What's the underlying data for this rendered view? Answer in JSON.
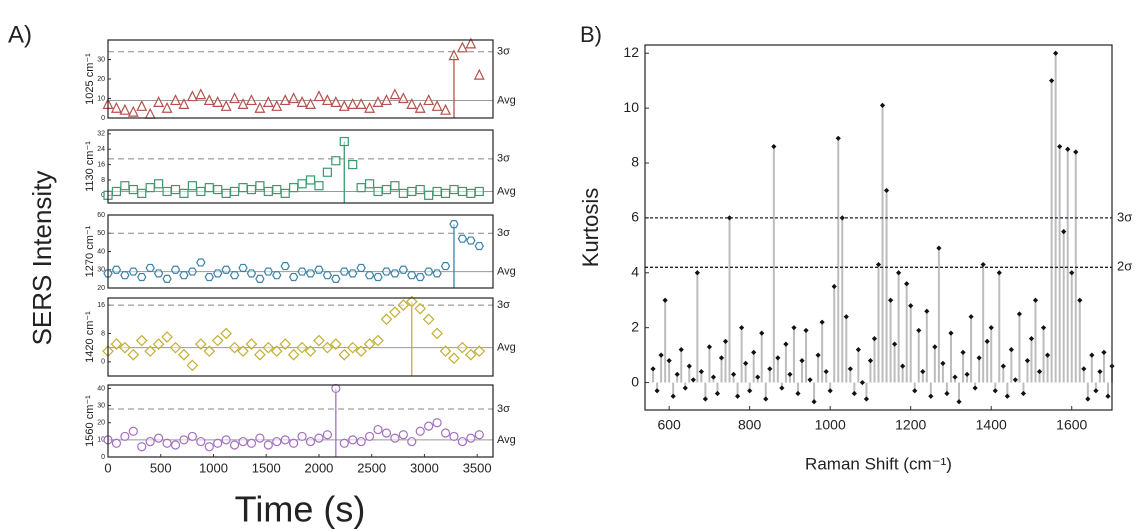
{
  "panel_a": {
    "label": "A)",
    "ylabel": "SERS Intensity",
    "xlabel": "Time (s)"
  },
  "chart_data": [
    {
      "type": "scatter",
      "ylabel": "1025 cm⁻¹",
      "marker": "triangle",
      "color": "#b5524c",
      "xlim": [
        0,
        3650
      ],
      "ylim": [
        0,
        40
      ],
      "yticks": [
        0,
        10,
        20,
        30
      ],
      "event_x": 3280,
      "lines": [
        {
          "value": 34,
          "label": "3σ",
          "style": "dashed"
        },
        {
          "value": 9,
          "label": "Avg",
          "style": "solid"
        }
      ],
      "x": [
        0,
        80,
        160,
        240,
        320,
        400,
        480,
        560,
        640,
        720,
        800,
        880,
        960,
        1040,
        1120,
        1200,
        1280,
        1360,
        1440,
        1520,
        1600,
        1680,
        1760,
        1840,
        1920,
        2000,
        2080,
        2160,
        2240,
        2320,
        2400,
        2480,
        2560,
        2640,
        2720,
        2800,
        2880,
        2960,
        3040,
        3120,
        3200,
        3280,
        3360,
        3440,
        3520
      ],
      "values": [
        7,
        5,
        4,
        3,
        6,
        2,
        8,
        5,
        9,
        7,
        11,
        12,
        9,
        8,
        6,
        10,
        7,
        9,
        5,
        8,
        6,
        9,
        10,
        8,
        7,
        11,
        9,
        8,
        6,
        7,
        7,
        5,
        8,
        9,
        12,
        10,
        7,
        5,
        9,
        6,
        4,
        32,
        36,
        38,
        22
      ]
    },
    {
      "type": "scatter",
      "ylabel": "1130 cm⁻¹",
      "marker": "square",
      "color": "#3a9a6e",
      "xlim": [
        0,
        3650
      ],
      "ylim": [
        -4,
        34
      ],
      "yticks": [
        0,
        8,
        16,
        24,
        32
      ],
      "event_x": 2240,
      "lines": [
        {
          "value": 19,
          "label": "3σ",
          "style": "dashed"
        },
        {
          "value": 2,
          "label": "Avg",
          "style": "solid"
        }
      ],
      "x": [
        0,
        80,
        160,
        240,
        320,
        400,
        480,
        560,
        640,
        720,
        800,
        880,
        960,
        1040,
        1120,
        1200,
        1280,
        1360,
        1440,
        1520,
        1600,
        1680,
        1760,
        1840,
        1920,
        2000,
        2080,
        2160,
        2240,
        2320,
        2400,
        2480,
        2560,
        2640,
        2720,
        2800,
        2880,
        2960,
        3040,
        3120,
        3200,
        3280,
        3360,
        3440,
        3520
      ],
      "values": [
        0,
        2,
        5,
        3,
        1,
        4,
        6,
        2,
        3,
        1,
        5,
        2,
        4,
        3,
        1,
        2,
        4,
        3,
        5,
        2,
        3,
        1,
        4,
        6,
        8,
        5,
        12,
        18,
        28,
        16,
        4,
        6,
        2,
        3,
        5,
        1,
        2,
        3,
        0,
        2,
        1,
        3,
        2,
        1,
        2
      ]
    },
    {
      "type": "scatter",
      "ylabel": "1270 cm⁻¹",
      "marker": "hexagon",
      "color": "#3d82a8",
      "xlim": [
        0,
        3650
      ],
      "ylim": [
        20,
        60
      ],
      "yticks": [
        20,
        30,
        40,
        50,
        60
      ],
      "event_x": 3280,
      "lines": [
        {
          "value": 50,
          "label": "3σ",
          "style": "dashed"
        },
        {
          "value": 29,
          "label": "Avg",
          "style": "solid"
        }
      ],
      "x": [
        0,
        80,
        160,
        240,
        320,
        400,
        480,
        560,
        640,
        720,
        800,
        880,
        960,
        1040,
        1120,
        1200,
        1280,
        1360,
        1440,
        1520,
        1600,
        1680,
        1760,
        1840,
        1920,
        2000,
        2080,
        2160,
        2240,
        2320,
        2400,
        2480,
        2560,
        2640,
        2720,
        2800,
        2880,
        2960,
        3040,
        3120,
        3200,
        3280,
        3360,
        3440,
        3520
      ],
      "values": [
        28,
        30,
        27,
        29,
        26,
        31,
        28,
        25,
        30,
        27,
        29,
        34,
        26,
        28,
        30,
        27,
        31,
        28,
        25,
        29,
        27,
        32,
        26,
        29,
        28,
        30,
        27,
        25,
        29,
        28,
        31,
        27,
        26,
        29,
        28,
        30,
        27,
        26,
        29,
        28,
        32,
        55,
        47,
        46,
        43
      ]
    },
    {
      "type": "scatter",
      "ylabel": "1420 cm⁻¹",
      "marker": "diamond",
      "color": "#c4ae34",
      "xlim": [
        0,
        3650
      ],
      "ylim": [
        -4,
        18
      ],
      "yticks": [
        0,
        8,
        16
      ],
      "event_x": 2880,
      "lines": [
        {
          "value": 16,
          "label": "3σ",
          "style": "dashed"
        },
        {
          "value": 4,
          "label": "Avg",
          "style": "solid"
        }
      ],
      "x": [
        0,
        80,
        160,
        240,
        320,
        400,
        480,
        560,
        640,
        720,
        800,
        880,
        960,
        1040,
        1120,
        1200,
        1280,
        1360,
        1440,
        1520,
        1600,
        1680,
        1760,
        1840,
        1920,
        2000,
        2080,
        2160,
        2240,
        2320,
        2400,
        2480,
        2560,
        2640,
        2720,
        2800,
        2880,
        2960,
        3040,
        3120,
        3200,
        3280,
        3360,
        3440,
        3520
      ],
      "values": [
        3,
        5,
        4,
        2,
        6,
        3,
        5,
        7,
        4,
        2,
        -1,
        5,
        3,
        6,
        8,
        4,
        3,
        5,
        2,
        4,
        3,
        5,
        2,
        4,
        3,
        6,
        4,
        5,
        2,
        4,
        3,
        5,
        6,
        12,
        14,
        16,
        17,
        15,
        12,
        8,
        3,
        1,
        4,
        2,
        3
      ]
    },
    {
      "type": "scatter",
      "ylabel": "1560 cm⁻¹",
      "marker": "circle",
      "color": "#a46fc2",
      "xlim": [
        0,
        3650
      ],
      "ylim": [
        0,
        42
      ],
      "yticks": [
        0,
        10,
        20,
        30,
        40
      ],
      "event_x": 2160,
      "lines": [
        {
          "value": 28,
          "label": "3σ",
          "style": "dashed"
        },
        {
          "value": 10,
          "label": "Avg",
          "style": "solid"
        }
      ],
      "xticks": [
        0,
        500,
        1000,
        1500,
        2000,
        2500,
        3000,
        3500
      ],
      "x": [
        0,
        80,
        160,
        240,
        320,
        400,
        480,
        560,
        640,
        720,
        800,
        880,
        960,
        1040,
        1120,
        1200,
        1280,
        1360,
        1440,
        1520,
        1600,
        1680,
        1760,
        1840,
        1920,
        2000,
        2080,
        2160,
        2240,
        2320,
        2400,
        2480,
        2560,
        2640,
        2720,
        2800,
        2880,
        2960,
        3040,
        3120,
        3200,
        3280,
        3360,
        3440,
        3520
      ],
      "values": [
        10,
        8,
        12,
        15,
        6,
        9,
        11,
        8,
        7,
        10,
        12,
        9,
        6,
        8,
        10,
        7,
        9,
        8,
        11,
        7,
        9,
        10,
        8,
        12,
        9,
        11,
        13,
        40,
        8,
        10,
        9,
        12,
        16,
        14,
        11,
        13,
        9,
        15,
        18,
        20,
        14,
        12,
        9,
        11,
        13
      ]
    },
    {
      "type": "stem",
      "panel_label": "B)",
      "xlabel": "Raman Shift (cm⁻¹)",
      "ylabel": "Kurtosis",
      "color": "#111111",
      "stem_color": "#bdbdbd",
      "xlim": [
        540,
        1700
      ],
      "xticks": [
        600,
        800,
        1000,
        1200,
        1400,
        1600
      ],
      "ylim": [
        -1,
        12.3
      ],
      "yticks": [
        0,
        2,
        4,
        6,
        8,
        10,
        12
      ],
      "lines": [
        {
          "value": 6,
          "label": "3σ",
          "style": "dotted"
        },
        {
          "value": 4.2,
          "label": "2σ",
          "style": "dotted"
        }
      ],
      "x": [
        560,
        570,
        580,
        590,
        600,
        610,
        620,
        630,
        640,
        650,
        660,
        670,
        680,
        690,
        700,
        710,
        720,
        730,
        740,
        750,
        760,
        770,
        780,
        790,
        800,
        810,
        820,
        830,
        840,
        850,
        860,
        870,
        880,
        890,
        900,
        910,
        920,
        930,
        940,
        950,
        960,
        970,
        980,
        990,
        1000,
        1010,
        1020,
        1030,
        1040,
        1050,
        1060,
        1070,
        1080,
        1090,
        1100,
        1110,
        1120,
        1130,
        1140,
        1150,
        1160,
        1170,
        1180,
        1190,
        1200,
        1210,
        1220,
        1230,
        1240,
        1250,
        1260,
        1270,
        1280,
        1290,
        1300,
        1310,
        1320,
        1330,
        1340,
        1350,
        1360,
        1370,
        1380,
        1390,
        1400,
        1410,
        1420,
        1430,
        1440,
        1450,
        1460,
        1470,
        1480,
        1490,
        1500,
        1510,
        1520,
        1530,
        1540,
        1550,
        1560,
        1570,
        1580,
        1590,
        1600,
        1610,
        1620,
        1630,
        1640,
        1650,
        1660,
        1670,
        1680,
        1690,
        1700
      ],
      "values": [
        0.5,
        -0.3,
        1.0,
        3.0,
        0.8,
        -0.5,
        0.3,
        1.2,
        -0.2,
        0.6,
        0.1,
        4.0,
        0.4,
        -0.6,
        1.3,
        0.2,
        -0.4,
        0.9,
        1.5,
        6.0,
        0.3,
        -0.5,
        2.0,
        0.7,
        -0.3,
        1.1,
        0.2,
        1.8,
        -0.6,
        0.5,
        8.6,
        0.9,
        -0.2,
        1.4,
        0.3,
        2.0,
        -0.4,
        0.8,
        1.9,
        0.1,
        -0.7,
        1.0,
        2.2,
        0.4,
        -0.3,
        3.5,
        8.9,
        6.0,
        2.4,
        0.5,
        -0.4,
        1.2,
        0.0,
        -0.6,
        0.8,
        1.6,
        4.3,
        10.1,
        7.0,
        3.0,
        1.4,
        4.0,
        0.6,
        3.6,
        2.8,
        -0.3,
        1.9,
        0.4,
        2.6,
        -0.5,
        1.3,
        4.9,
        0.7,
        -0.4,
        1.8,
        0.2,
        -0.7,
        1.1,
        0.3,
        2.4,
        -0.2,
        0.9,
        4.3,
        1.5,
        2.0,
        -0.3,
        4.0,
        0.6,
        -0.5,
        1.2,
        0.1,
        2.5,
        -0.4,
        0.8,
        1.6,
        3.0,
        0.4,
        2.0,
        1.0,
        11.0,
        12.0,
        8.6,
        5.5,
        8.5,
        4.0,
        8.4,
        3.0,
        0.5,
        -0.6,
        1.0,
        -0.3,
        0.4,
        1.1,
        -0.5,
        0.6
      ]
    }
  ]
}
